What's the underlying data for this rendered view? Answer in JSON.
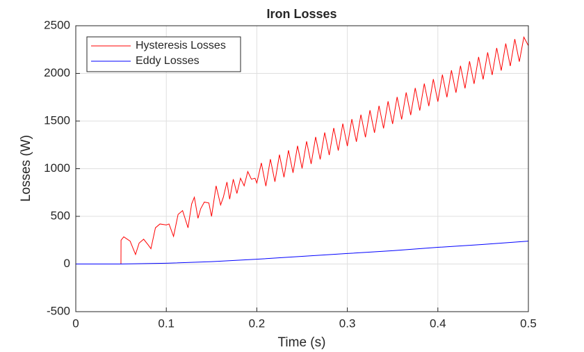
{
  "chart_data": {
    "type": "line",
    "title": "Iron Losses",
    "x_label": "Time (s)",
    "y_label": "Losses (W)",
    "xlim": [
      0,
      0.5
    ],
    "xticks": [
      0,
      0.1,
      0.2,
      0.3,
      0.4,
      0.5
    ],
    "ylim": [
      -500,
      2500
    ],
    "yticks": [
      -500,
      0,
      500,
      1000,
      1500,
      2000,
      2500
    ],
    "grid": true,
    "legend": "upper-left",
    "series": [
      {
        "name": "Hysteresis Losses",
        "color": "#ff0000",
        "x": [
          0,
          0.0499,
          0.05,
          0.053,
          0.06,
          0.066,
          0.07,
          0.075,
          0.08,
          0.083,
          0.088,
          0.093,
          0.1,
          0.103,
          0.108,
          0.113,
          0.118,
          0.121,
          0.124,
          0.128,
          0.131,
          0.135,
          0.138,
          0.142,
          0.147,
          0.15,
          0.155,
          0.16,
          0.163,
          0.167,
          0.17,
          0.174,
          0.178,
          0.182,
          0.186,
          0.19,
          0.194,
          0.198,
          0.2,
          0.205,
          0.21,
          0.215,
          0.22,
          0.225,
          0.23,
          0.235,
          0.24,
          0.245,
          0.25,
          0.255,
          0.26,
          0.265,
          0.27,
          0.275,
          0.28,
          0.285,
          0.29,
          0.295,
          0.3,
          0.305,
          0.31,
          0.315,
          0.32,
          0.325,
          0.33,
          0.335,
          0.34,
          0.345,
          0.35,
          0.355,
          0.36,
          0.365,
          0.37,
          0.375,
          0.38,
          0.385,
          0.39,
          0.395,
          0.4,
          0.405,
          0.41,
          0.415,
          0.42,
          0.425,
          0.43,
          0.435,
          0.44,
          0.445,
          0.45,
          0.455,
          0.46,
          0.465,
          0.47,
          0.475,
          0.48,
          0.485,
          0.49,
          0.495,
          0.5
        ],
        "values": [
          0,
          0,
          250,
          285,
          240,
          100,
          220,
          260,
          200,
          160,
          380,
          420,
          410,
          420,
          290,
          520,
          560,
          470,
          380,
          630,
          700,
          480,
          580,
          650,
          640,
          500,
          820,
          620,
          700,
          860,
          680,
          890,
          740,
          900,
          820,
          970,
          890,
          900,
          850,
          1060,
          817,
          1100,
          863,
          1147,
          910,
          1193,
          957,
          1240,
          1003,
          1287,
          1050,
          1333,
          1097,
          1380,
          1143,
          1427,
          1190,
          1473,
          1237,
          1520,
          1283,
          1567,
          1330,
          1613,
          1377,
          1660,
          1423,
          1707,
          1470,
          1753,
          1517,
          1800,
          1563,
          1847,
          1610,
          1893,
          1657,
          1940,
          1703,
          1987,
          1750,
          2033,
          1797,
          2080,
          1843,
          2127,
          1890,
          2173,
          1937,
          2220,
          1983,
          2267,
          2030,
          2313,
          2077,
          2360,
          2123,
          2380,
          2290
        ]
      },
      {
        "name": "Eddy Losses",
        "color": "#0000ff",
        "x": [
          0,
          0.05,
          0.1,
          0.15,
          0.2,
          0.25,
          0.3,
          0.35,
          0.4,
          0.45,
          0.5
        ],
        "values": [
          0,
          0,
          8,
          25,
          50,
          80,
          110,
          140,
          175,
          205,
          240
        ]
      }
    ]
  }
}
